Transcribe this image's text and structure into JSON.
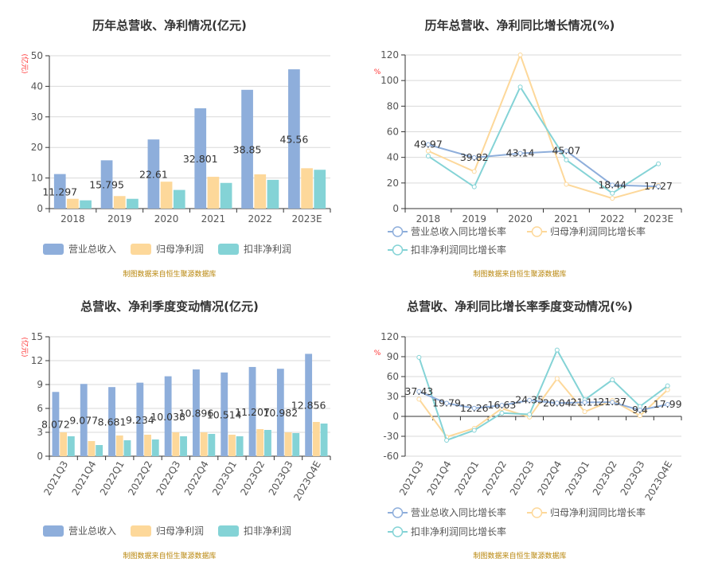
{
  "colors": {
    "revenue": "#8eaedb",
    "net_profit": "#fdd89a",
    "deducted": "#84d3d6",
    "grid": "#d9d9d9",
    "axis": "#333333",
    "source": "#b8860b",
    "unit": "#ff3333"
  },
  "source_note": "制图数据来自恒生聚源数据库",
  "chart_data": [
    {
      "type": "bar",
      "title": "历年总营收、净利情况(亿元)",
      "ylabel": "(亿元)",
      "ylim": [
        0,
        50
      ],
      "yticks": [
        0,
        10,
        20,
        30,
        40,
        50
      ],
      "grid": true,
      "legend": "bottom",
      "categories": [
        "2018",
        "2019",
        "2020",
        "2021",
        "2022",
        "2023E"
      ],
      "series": [
        {
          "name": "营业总收入",
          "values": [
            11.297,
            15.795,
            22.61,
            32.801,
            38.85,
            45.56
          ],
          "labels": [
            "11.297",
            "15.795",
            "22.61",
            "32.801",
            "38.85",
            "45.56"
          ]
        },
        {
          "name": "归母净利润",
          "values": [
            3.2,
            4.1,
            8.8,
            10.4,
            11.2,
            13.2
          ]
        },
        {
          "name": "扣非净利润",
          "values": [
            2.7,
            3.2,
            6.1,
            8.4,
            9.4,
            12.7
          ]
        }
      ]
    },
    {
      "type": "line",
      "title": "历年总营收、净利同比增长情况(%)",
      "ylabel": "%",
      "ylim": [
        0,
        120
      ],
      "yticks": [
        0,
        20,
        40,
        60,
        80,
        100,
        120
      ],
      "grid": true,
      "legend": "bottom",
      "categories": [
        "2018",
        "2019",
        "2020",
        "2021",
        "2022",
        "2023E"
      ],
      "series": [
        {
          "name": "营业总收入同比增长率",
          "values": [
            49.97,
            39.82,
            43.14,
            45.07,
            18.44,
            17.27
          ],
          "labels": [
            "49.97",
            "39.82",
            "43.14",
            "45.07",
            "18.44",
            "17.27"
          ]
        },
        {
          "name": "归母净利润同比增长率",
          "values": [
            45,
            29,
            120,
            19,
            8,
            18
          ]
        },
        {
          "name": "扣非净利润同比增长率",
          "values": [
            41,
            17,
            95,
            38,
            12,
            35
          ]
        }
      ]
    },
    {
      "type": "bar",
      "title": "总营收、净利季度变动情况(亿元)",
      "ylabel": "(亿元)",
      "ylim": [
        0,
        15
      ],
      "yticks": [
        0,
        3,
        6,
        9,
        12,
        15
      ],
      "grid": true,
      "legend": "bottom",
      "categories": [
        "2021Q3",
        "2021Q4",
        "2022Q1",
        "2022Q2",
        "2022Q3",
        "2022Q4",
        "2023Q1",
        "2023Q2",
        "2023Q3",
        "2023Q4E"
      ],
      "series": [
        {
          "name": "营业总收入",
          "values": [
            8.072,
            9.077,
            8.681,
            9.234,
            10.038,
            10.896,
            10.514,
            11.207,
            10.982,
            12.856
          ],
          "labels": [
            "8.072",
            "9.077",
            "8.681",
            "9.234",
            "10.038",
            "10.896",
            "10.514",
            "11.207",
            "10.982",
            "12.856"
          ]
        },
        {
          "name": "归母净利润",
          "values": [
            3.0,
            1.9,
            2.6,
            2.7,
            3.0,
            3.0,
            2.7,
            3.4,
            3.0,
            4.3
          ]
        },
        {
          "name": "扣非净利润",
          "values": [
            2.5,
            1.4,
            2.0,
            2.1,
            2.5,
            2.8,
            2.5,
            3.3,
            2.9,
            4.1
          ]
        }
      ]
    },
    {
      "type": "line",
      "title": "总营收、净利同比增长率季度变动情况(%)",
      "ylabel": "%",
      "ylim": [
        -60,
        120
      ],
      "yticks": [
        -60,
        -30,
        0,
        30,
        60,
        90,
        120
      ],
      "grid": true,
      "legend": "bottom",
      "categories": [
        "2021Q3",
        "2021Q4",
        "2022Q1",
        "2022Q2",
        "2022Q3",
        "2022Q4",
        "2023Q1",
        "2023Q2",
        "2023Q3",
        "2023Q4E"
      ],
      "series": [
        {
          "name": "营业总收入同比增长率",
          "values": [
            37.43,
            19.79,
            12.26,
            16.63,
            24.35,
            20.04,
            21.11,
            21.37,
            9.4,
            17.99
          ],
          "labels": [
            "37.43",
            "19.79",
            "12.26",
            "16.63",
            "24.35",
            "20.04",
            "21.11",
            "21.37",
            "9.4",
            "17.99"
          ]
        },
        {
          "name": "归母净利润同比增长率",
          "values": [
            26,
            -31,
            -18,
            12,
            -1,
            57,
            7,
            24,
            1,
            40
          ]
        },
        {
          "name": "扣非净利润同比增长率",
          "values": [
            89,
            -36,
            -21,
            5,
            3,
            100,
            25,
            55,
            15,
            46
          ]
        }
      ]
    }
  ]
}
